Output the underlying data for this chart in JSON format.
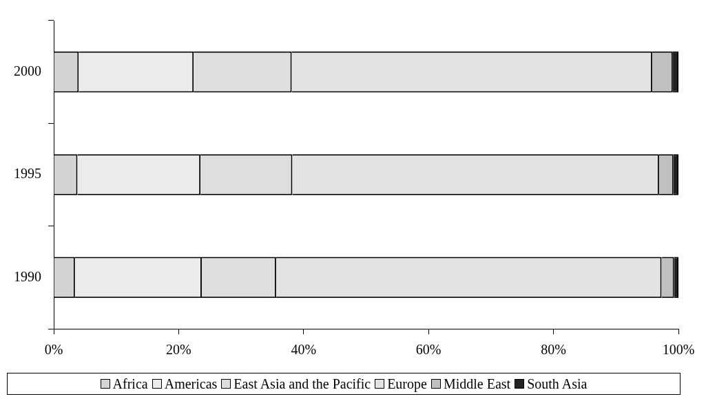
{
  "chart_data": {
    "type": "bar",
    "orientation": "horizontal",
    "stacked": true,
    "categories": [
      "2000",
      "1995",
      "1990"
    ],
    "series": [
      {
        "name": "Africa",
        "color": "#d4d4d4",
        "values": [
          4.0,
          3.8,
          3.4
        ]
      },
      {
        "name": "Americas",
        "color": "#ebebeb",
        "values": [
          18.4,
          19.7,
          20.3
        ]
      },
      {
        "name": "East Asia and the Pacific",
        "color": "#dedede",
        "values": [
          15.7,
          14.7,
          11.9
        ]
      },
      {
        "name": "Europe",
        "color": "#e3e3e3",
        "values": [
          57.7,
          58.7,
          61.7
        ]
      },
      {
        "name": "Middle East",
        "color": "#c0c0c0",
        "values": [
          3.3,
          2.3,
          2.0
        ]
      },
      {
        "name": "South Asia",
        "color": "#222222",
        "values": [
          0.9,
          0.8,
          0.7
        ]
      }
    ],
    "xlim": [
      0,
      100
    ],
    "xticks": [
      {
        "value": 0,
        "label": "0%"
      },
      {
        "value": 20,
        "label": "20%"
      },
      {
        "value": 40,
        "label": "40%"
      },
      {
        "value": 60,
        "label": "60%"
      },
      {
        "value": 80,
        "label": "80%"
      },
      {
        "value": 100,
        "label": "100%"
      }
    ],
    "grid": false,
    "legend": "bottom"
  }
}
